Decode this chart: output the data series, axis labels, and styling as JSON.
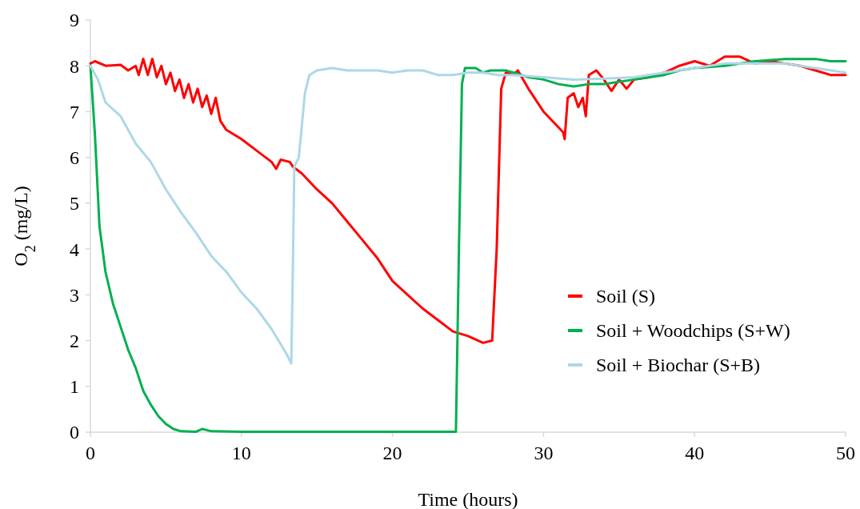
{
  "chart_data": {
    "type": "line",
    "xlabel": "Time (hours)",
    "ylabel": "O$_{2}$ (mg/L)",
    "xlim": [
      0,
      50
    ],
    "ylim": [
      0,
      9
    ],
    "xticks": [
      0,
      10,
      20,
      30,
      40,
      50
    ],
    "yticks": [
      0,
      1,
      2,
      3,
      4,
      5,
      6,
      7,
      8,
      9
    ],
    "grid": false,
    "legend": "right",
    "marker": "none",
    "line_style": "solid",
    "series": [
      {
        "name": "Soil (S)",
        "color": "#ff0000",
        "x": [
          0,
          0.3,
          1,
          2,
          2.5,
          3,
          3.2,
          3.5,
          3.8,
          4.1,
          4.4,
          4.7,
          5.0,
          5.3,
          5.6,
          5.9,
          6.2,
          6.5,
          6.8,
          7.1,
          7.4,
          7.7,
          8.0,
          8.3,
          8.6,
          9,
          10,
          11,
          12,
          12.3,
          12.6,
          13.2,
          13.4,
          14,
          15,
          16,
          17,
          18,
          19,
          20,
          21,
          22,
          23,
          24,
          25,
          26,
          26.6,
          26.9,
          27.2,
          27.5,
          28,
          28.3,
          29,
          30,
          31.3,
          31.4,
          31.6,
          32,
          32.3,
          32.6,
          32.8,
          33,
          33.5,
          34,
          34.5,
          35,
          35.5,
          36,
          37,
          38,
          39,
          40,
          41,
          42,
          43,
          44,
          45,
          46,
          47,
          48,
          49,
          50
        ],
        "values": [
          8.05,
          8.1,
          8.0,
          8.02,
          7.9,
          8.0,
          7.8,
          8.15,
          7.8,
          8.15,
          7.75,
          8.0,
          7.6,
          7.85,
          7.45,
          7.7,
          7.3,
          7.6,
          7.2,
          7.5,
          7.1,
          7.35,
          6.95,
          7.3,
          6.8,
          6.6,
          6.4,
          6.15,
          5.9,
          5.75,
          5.95,
          5.9,
          5.8,
          5.65,
          5.3,
          5.0,
          4.6,
          4.2,
          3.8,
          3.3,
          3.0,
          2.7,
          2.45,
          2.2,
          2.1,
          1.95,
          2.0,
          4.0,
          7.5,
          7.85,
          7.8,
          7.9,
          7.5,
          7.0,
          6.55,
          6.4,
          7.3,
          7.4,
          7.1,
          7.3,
          6.9,
          7.8,
          7.9,
          7.7,
          7.45,
          7.7,
          7.5,
          7.7,
          7.75,
          7.85,
          8.0,
          8.1,
          8.0,
          8.2,
          8.2,
          8.05,
          8.1,
          8.05,
          8.0,
          7.9,
          7.8,
          7.8
        ]
      },
      {
        "name": "Soil + Woodchips (S+W)",
        "color": "#00b050",
        "x": [
          0,
          0.3,
          0.6,
          1,
          1.5,
          2,
          2.5,
          3,
          3.5,
          4,
          4.5,
          5,
          5.5,
          6,
          7,
          7.4,
          8,
          10,
          20,
          24.2,
          24.4,
          24.6,
          24.8,
          25.5,
          26,
          26.5,
          27.5,
          28,
          29,
          30,
          31,
          32,
          33,
          34,
          35,
          36,
          37,
          38,
          39,
          40,
          42,
          44,
          46,
          47,
          48,
          49,
          50
        ],
        "values": [
          8.0,
          6.5,
          4.5,
          3.5,
          2.8,
          2.3,
          1.8,
          1.4,
          0.9,
          0.6,
          0.35,
          0.18,
          0.07,
          0.02,
          0.01,
          0.07,
          0.02,
          0.01,
          0.01,
          0.01,
          4.0,
          7.6,
          7.95,
          7.95,
          7.85,
          7.9,
          7.9,
          7.85,
          7.75,
          7.7,
          7.6,
          7.55,
          7.6,
          7.6,
          7.65,
          7.7,
          7.75,
          7.8,
          7.9,
          7.95,
          8.0,
          8.1,
          8.15,
          8.15,
          8.15,
          8.1,
          8.1
        ]
      },
      {
        "name": "Soil + Biochar (S+B)",
        "color": "#add8e6",
        "x": [
          0,
          0.5,
          1,
          2,
          3,
          4,
          5,
          6,
          7,
          8,
          9,
          10,
          11,
          12,
          13,
          13.3,
          13.4,
          13.5,
          13.8,
          14.2,
          14.5,
          15,
          16,
          17,
          18,
          19,
          20,
          21,
          22,
          23,
          24,
          25,
          26,
          27,
          28,
          30,
          32,
          34,
          36,
          38,
          40,
          42,
          44,
          46,
          48,
          50
        ],
        "values": [
          8.0,
          7.7,
          7.2,
          6.9,
          6.3,
          5.9,
          5.3,
          4.8,
          4.35,
          3.85,
          3.5,
          3.05,
          2.7,
          2.25,
          1.7,
          1.5,
          3.5,
          5.8,
          6.0,
          7.4,
          7.8,
          7.9,
          7.95,
          7.9,
          7.9,
          7.9,
          7.85,
          7.9,
          7.9,
          7.8,
          7.8,
          7.85,
          7.85,
          7.8,
          7.8,
          7.75,
          7.7,
          7.72,
          7.75,
          7.85,
          7.95,
          8.05,
          8.05,
          8.05,
          7.95,
          7.85
        ]
      }
    ]
  }
}
